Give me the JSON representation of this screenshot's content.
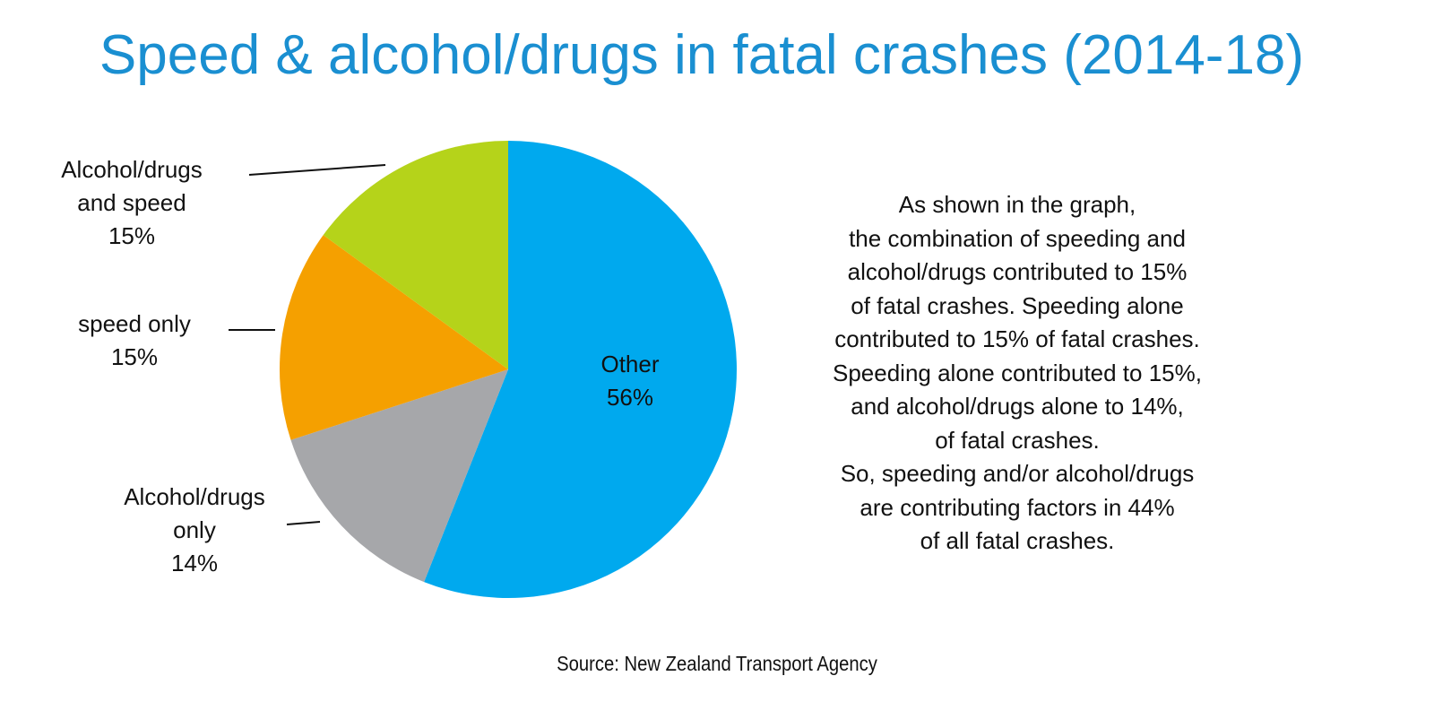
{
  "chart_data": {
    "type": "pie",
    "title": "Speed & alcohol/drugs in fatal crashes (2014-18)",
    "categories": [
      "Other",
      "Alcohol/drugs only",
      "speed only",
      "Alcohol/drugs and speed"
    ],
    "values": [
      56,
      14,
      15,
      15
    ],
    "value_labels": [
      "56%",
      "14%",
      "15%",
      "15%"
    ],
    "colors": [
      "#00a9ee",
      "#a6a7aa",
      "#f5a000",
      "#b5d31a"
    ],
    "annotation_lines": [
      "As shown in the graph,",
      "the combination of speeding and",
      "alcohol/drugs contributed to 15%",
      "of fatal crashes. Speeding alone",
      "contributed to 15% of fatal crashes.",
      "Speeding alone contributed to 15%,",
      "and alcohol/drugs alone to 14%,",
      "of fatal crashes.",
      "So, speeding and/or alcohol/drugs",
      "are contributing factors in 44%",
      "of all fatal crashes."
    ],
    "source": "Source: New Zealand Transport Agency"
  }
}
